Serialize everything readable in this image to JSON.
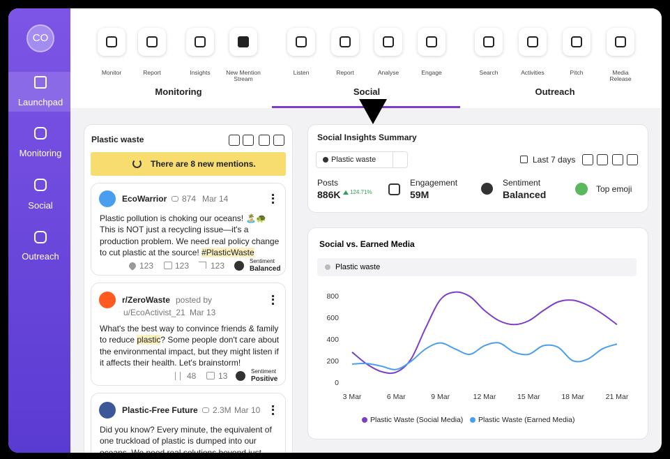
{
  "sidebar": {
    "avatar": "CO",
    "items": [
      "Launchpad",
      "Monitoring",
      "Social",
      "Outreach"
    ]
  },
  "top_nav": {
    "groups": [
      {
        "label": "Monitoring",
        "items": [
          "Monitor",
          "Report",
          "Insights",
          "New Mention Stream"
        ]
      },
      {
        "label": "Social",
        "items": [
          "Listen",
          "Report",
          "Analyse",
          "Engage"
        ]
      },
      {
        "label": "Outreach",
        "items": [
          "Search",
          "Activities",
          "Pitch",
          "Media Release"
        ]
      }
    ]
  },
  "feed": {
    "title": "Plastic waste",
    "banner": "There are 8 new mentions.",
    "posts": [
      {
        "author": "EcoWarrior",
        "followers": "874",
        "date": "Mar 14",
        "text": [
          "Plastic pollution is choking our oceans! 🏝️🐢 This is NOT just a recycling issue—it's a production problem. We need real policy change to cut plastic at the source! ",
          "#PlasticWaste"
        ],
        "likes": "123",
        "comments": "123",
        "shares": "123",
        "sentiment_label": "Sentiment",
        "sentiment": "Balanced"
      },
      {
        "author": "r/ZeroWaste",
        "posted_by": "posted by",
        "user": "u/EcoActivist_21",
        "date": "Mar 13",
        "text": [
          "What's the best way to convince friends & family to reduce ",
          "plastic",
          "? Some people don't care about the environmental impact, but they might listen if it affects their health. Let's brainstorm!"
        ],
        "upvotes": "48",
        "comments": "13",
        "sentiment_label": "Sentiment",
        "sentiment": "Positive"
      },
      {
        "author": "Plastic-Free Future",
        "followers": "2.3M",
        "date": "Mar 10",
        "text": [
          "Did you know? Every minute, the equivalent of one truckload of plastic is dumped into our oceans. We need real solutions beyond just recycling—"
        ]
      }
    ]
  },
  "summary": {
    "title": "Social Insights Summary",
    "filter": "Plastic waste",
    "period": "Last 7 days",
    "posts_label": "Posts",
    "posts": "886K",
    "posts_change": "124.71%",
    "engagement_label": "Engagement",
    "engagement": "59M",
    "sentiment_label": "Sentiment",
    "sentiment": "Balanced",
    "top_emoji_label": "Top emoji"
  },
  "chart_data": {
    "type": "line",
    "title": "Social vs. Earned Media",
    "filter": "Plastic waste",
    "categories": [
      "3 Mar",
      null,
      null,
      "6 Mar",
      null,
      null,
      "9 Mar",
      null,
      null,
      "12 Mar",
      null,
      null,
      "15 Mar",
      null,
      null,
      "18 Mar",
      null,
      null,
      "21 Mar"
    ],
    "series": [
      {
        "name": "Plastic Waste (Social Media)",
        "color": "#7b3fc8",
        "values": [
          285,
          175,
          105,
          100,
          220,
          510,
          770,
          840,
          800,
          670,
          575,
          540,
          575,
          670,
          750,
          765,
          720,
          640,
          540
        ]
      },
      {
        "name": "Plastic Waste (Earned Media)",
        "color": "#4a9ef0",
        "values": [
          175,
          180,
          155,
          125,
          200,
          315,
          370,
          315,
          265,
          345,
          370,
          285,
          265,
          345,
          330,
          205,
          220,
          315,
          360
        ]
      }
    ],
    "ylim": [
      0,
      900
    ],
    "yticks": [
      0,
      200,
      400,
      600,
      800
    ]
  }
}
